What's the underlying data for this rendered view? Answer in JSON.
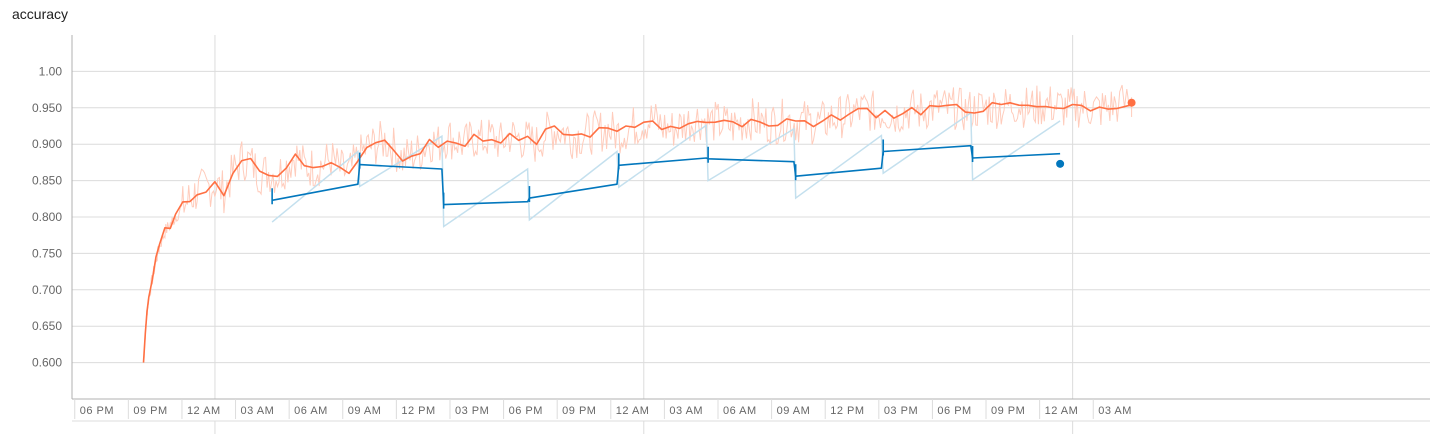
{
  "chart_data": {
    "type": "line",
    "title": "accuracy",
    "xlabel": "",
    "ylabel": "",
    "ylim": [
      0.55,
      1.05
    ],
    "yticks": [
      "1.00",
      "0.950",
      "0.900",
      "0.850",
      "0.800",
      "0.750",
      "0.700",
      "0.650",
      "0.600"
    ],
    "ytick_values": [
      1.0,
      0.95,
      0.9,
      0.85,
      0.8,
      0.75,
      0.7,
      0.65,
      0.6
    ],
    "xlim_hours": [
      16.0,
      92.0
    ],
    "xticks": [
      "06 PM",
      "09 PM",
      "12 AM",
      "03 AM",
      "06 AM",
      "09 AM",
      "12 PM",
      "03 PM",
      "06 PM",
      "09 PM",
      "12 AM",
      "03 AM",
      "06 AM",
      "09 AM",
      "12 PM",
      "03 PM",
      "06 PM",
      "09 PM",
      "12 AM",
      "03 AM"
    ],
    "xtick_hours": [
      18,
      21,
      24,
      27,
      30,
      33,
      36,
      39,
      42,
      45,
      48,
      51,
      54,
      57,
      60,
      63,
      66,
      69,
      72,
      75
    ],
    "grid": true,
    "series": [
      {
        "color": "#ff7043",
        "raw_color": "#ffccbc",
        "x_hours": [
          20.0,
          20.1,
          20.2,
          20.3,
          20.5,
          20.7,
          20.9,
          21.2,
          21.5,
          21.8,
          22.2,
          22.6,
          23.0,
          23.5,
          24.0,
          24.5,
          25.0,
          25.5,
          26.0,
          26.5,
          27.0,
          27.5,
          28.0,
          28.5,
          29.0,
          29.5,
          30.0,
          30.5,
          31.0,
          31.5,
          32.0,
          32.5,
          33.0,
          33.5,
          34.0,
          34.5,
          35.0,
          35.5,
          36.0,
          36.5,
          37.0,
          37.5,
          38.0,
          38.5,
          39.0,
          39.5,
          40.0,
          40.5,
          41.0,
          41.5,
          42.0,
          42.5,
          43.0,
          43.5,
          44.0,
          44.5,
          45.0,
          45.5,
          46.0,
          46.5,
          47.0,
          47.5,
          48.0,
          48.5,
          49.0,
          49.5,
          50.0,
          50.5,
          51.0,
          51.5,
          52.0,
          52.5,
          53.0,
          53.5,
          54.0,
          54.5,
          55.0,
          55.5,
          56.0,
          56.5,
          57.0,
          57.5,
          58.0,
          58.5,
          59.0,
          59.5,
          60.0,
          60.5,
          61.0,
          61.5,
          62.0,
          62.5,
          63.0,
          63.5,
          64.0,
          64.5,
          65.0,
          65.5,
          66.0,
          66.5,
          67.0,
          67.5,
          68.0,
          68.5,
          69.0,
          69.5,
          70.0,
          70.5,
          71.0,
          71.5,
          72.0,
          72.5,
          73.0,
          73.5,
          74.0,
          74.5,
          75.3
        ],
        "values": [
          0.6,
          0.64,
          0.67,
          0.69,
          0.715,
          0.74,
          0.76,
          0.78,
          0.79,
          0.8,
          0.815,
          0.825,
          0.835,
          0.84,
          0.845,
          0.835,
          0.86,
          0.88,
          0.875,
          0.86,
          0.862,
          0.858,
          0.87,
          0.885,
          0.87,
          0.868,
          0.872,
          0.88,
          0.865,
          0.86,
          0.88,
          0.895,
          0.9,
          0.905,
          0.895,
          0.88,
          0.885,
          0.89,
          0.905,
          0.9,
          0.91,
          0.905,
          0.9,
          0.908,
          0.905,
          0.91,
          0.902,
          0.912,
          0.908,
          0.905,
          0.9,
          0.915,
          0.92,
          0.918,
          0.91,
          0.912,
          0.915,
          0.918,
          0.92,
          0.915,
          0.92,
          0.925,
          0.93,
          0.935,
          0.925,
          0.92,
          0.925,
          0.93,
          0.935,
          0.932,
          0.93,
          0.928,
          0.925,
          0.93,
          0.935,
          0.93,
          0.928,
          0.93,
          0.935,
          0.93,
          0.932,
          0.928,
          0.93,
          0.935,
          0.938,
          0.94,
          0.945,
          0.948,
          0.942,
          0.945,
          0.94,
          0.945,
          0.948,
          0.945,
          0.95,
          0.952,
          0.948,
          0.95,
          0.945,
          0.948,
          0.95,
          0.952,
          0.95,
          0.953,
          0.955,
          0.95,
          0.952,
          0.955,
          0.953,
          0.95,
          0.95,
          0.952,
          0.95,
          0.948,
          0.95,
          0.955,
          0.957
        ],
        "end_marker": true
      },
      {
        "color": "#0277bd",
        "raw_color": "#c4e0ee",
        "x_hours": [
          27.2,
          32.0,
          32.1,
          36.7,
          36.8,
          41.5,
          41.6,
          46.5,
          46.6,
          51.5,
          51.6,
          56.4,
          56.5,
          61.3,
          61.4,
          66.3,
          66.4,
          71.3
        ],
        "values": [
          0.823,
          0.845,
          0.872,
          0.866,
          0.817,
          0.821,
          0.826,
          0.845,
          0.871,
          0.881,
          0.88,
          0.876,
          0.856,
          0.867,
          0.89,
          0.898,
          0.881,
          0.887
        ],
        "end_marker": true,
        "end_value": 0.873
      }
    ]
  }
}
